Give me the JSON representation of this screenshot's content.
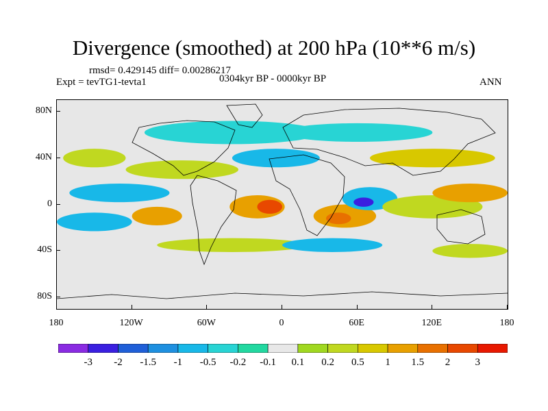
{
  "title": "Divergence (smoothed) at 200 hPa (10**6 m/s)",
  "stats": "rmsd= 0.429145 diff= 0.00286217",
  "experiment": "Expt = tevTG1-tevta1",
  "period": "0304kyr BP - 0000kyr BP",
  "season": "ANN",
  "map": {
    "lon_range": [
      -180,
      180
    ],
    "lat_range": [
      -90,
      90
    ],
    "y_ticks": [
      {
        "lat": 80,
        "label": "80N"
      },
      {
        "lat": 40,
        "label": "40N"
      },
      {
        "lat": 0,
        "label": "0"
      },
      {
        "lat": -40,
        "label": "40S"
      },
      {
        "lat": -80,
        "label": "80S"
      }
    ],
    "x_ticks": [
      {
        "lon": -180,
        "label": "180"
      },
      {
        "lon": -120,
        "label": "120W"
      },
      {
        "lon": -60,
        "label": "60W"
      },
      {
        "lon": 0,
        "label": "0"
      },
      {
        "lon": 60,
        "label": "60E"
      },
      {
        "lon": 120,
        "label": "120E"
      },
      {
        "lon": 180,
        "label": "180"
      }
    ],
    "background_color": "#e7e7e7"
  },
  "colorbar": {
    "colors": [
      "#8a2be2",
      "#3a1fe0",
      "#1f5fd8",
      "#1e90e0",
      "#18b8e8",
      "#28d4d4",
      "#22d8a0",
      "#e8e8e8",
      "#a0d820",
      "#c0d820",
      "#d8c800",
      "#e8a000",
      "#e87000",
      "#e84800",
      "#e81800"
    ],
    "labels": [
      "-3",
      "-2",
      "-1.5",
      "-1",
      "-0.5",
      "-0.2",
      "-0.1",
      "0.1",
      "0.2",
      "0.5",
      "1",
      "1.5",
      "2",
      "3"
    ]
  },
  "field_blobs": [
    {
      "lon": -20,
      "lat": -2,
      "rx": 22,
      "ry": 10,
      "level": 11
    },
    {
      "lon": -10,
      "lat": -2,
      "rx": 10,
      "ry": 6,
      "level": 13
    },
    {
      "lon": 50,
      "lat": -10,
      "rx": 25,
      "ry": 10,
      "level": 11
    },
    {
      "lon": 45,
      "lat": -12,
      "rx": 10,
      "ry": 5,
      "level": 12
    },
    {
      "lon": 70,
      "lat": 5,
      "rx": 22,
      "ry": 10,
      "level": 4
    },
    {
      "lon": 65,
      "lat": 2,
      "rx": 8,
      "ry": 4,
      "level": 1
    },
    {
      "lon": 120,
      "lat": -2,
      "rx": 40,
      "ry": 10,
      "level": 9
    },
    {
      "lon": 150,
      "lat": 10,
      "rx": 30,
      "ry": 8,
      "level": 11
    },
    {
      "lon": -130,
      "lat": 10,
      "rx": 40,
      "ry": 8,
      "level": 4
    },
    {
      "lon": -150,
      "lat": -15,
      "rx": 30,
      "ry": 8,
      "level": 4
    },
    {
      "lon": -80,
      "lat": 30,
      "rx": 45,
      "ry": 8,
      "level": 9
    },
    {
      "lon": -40,
      "lat": -35,
      "rx": 60,
      "ry": 6,
      "level": 9
    },
    {
      "lon": 40,
      "lat": -35,
      "rx": 40,
      "ry": 6,
      "level": 4
    },
    {
      "lon": -40,
      "lat": 62,
      "rx": 70,
      "ry": 10,
      "level": 5
    },
    {
      "lon": 60,
      "lat": 62,
      "rx": 60,
      "ry": 8,
      "level": 5
    },
    {
      "lon": 120,
      "lat": 40,
      "rx": 50,
      "ry": 8,
      "level": 10
    },
    {
      "lon": -150,
      "lat": 40,
      "rx": 25,
      "ry": 8,
      "level": 9
    },
    {
      "lon": -100,
      "lat": -10,
      "rx": 20,
      "ry": 8,
      "level": 11
    },
    {
      "lon": -5,
      "lat": 40,
      "rx": 35,
      "ry": 8,
      "level": 4
    },
    {
      "lon": 150,
      "lat": -40,
      "rx": 30,
      "ry": 6,
      "level": 9
    }
  ]
}
